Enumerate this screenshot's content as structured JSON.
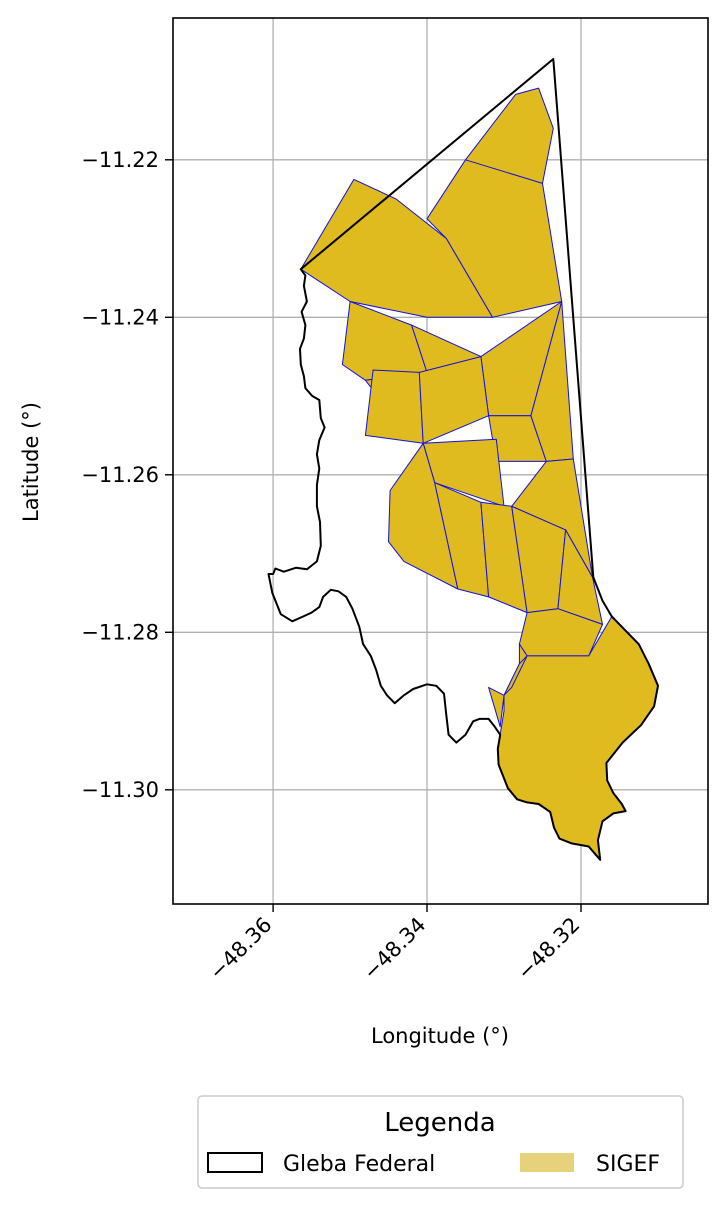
{
  "chart_data": {
    "type": "map",
    "xlabel": "Longitude (°)",
    "ylabel": "Latitude (°)",
    "xlim": [
      -48.373,
      -48.3035
    ],
    "ylim": [
      -11.3145,
      -11.202
    ],
    "x_ticks": [
      -48.36,
      -48.34,
      -48.32
    ],
    "x_tick_labels": [
      "−48.36",
      "−48.34",
      "−48.32"
    ],
    "y_ticks": [
      -11.22,
      -11.24,
      -11.26,
      -11.28,
      -11.3
    ],
    "y_tick_labels": [
      "−11.22",
      "−11.24",
      "−11.26",
      "−11.28",
      "−11.30"
    ],
    "grid": true,
    "legend": {
      "title": "Legenda",
      "placement": "bottom-center",
      "entries": [
        {
          "label": "Gleba Federal",
          "style": "outline",
          "color": "#000000"
        },
        {
          "label": "SIGEF",
          "style": "fill",
          "color": "#e6d27a"
        }
      ]
    },
    "colors": {
      "gleba_outline": "#000000",
      "sigef_fill": "#dfbb20",
      "sigef_edge": "#1010dd",
      "grid": "#b0b0b0"
    },
    "gleba_federal_boundary": [
      [
        -48.3236,
        -11.2072
      ],
      [
        -48.3564,
        -11.2339
      ],
      [
        -48.3558,
        -11.2347
      ],
      [
        -48.356,
        -11.236
      ],
      [
        -48.3556,
        -11.238
      ],
      [
        -48.3563,
        -11.2393
      ],
      [
        -48.3558,
        -11.241
      ],
      [
        -48.356,
        -11.2427
      ],
      [
        -48.3565,
        -11.244
      ],
      [
        -48.3564,
        -11.246
      ],
      [
        -48.356,
        -11.2475
      ],
      [
        -48.3558,
        -11.249
      ],
      [
        -48.3549,
        -11.25
      ],
      [
        -48.354,
        -11.2505
      ],
      [
        -48.3538,
        -11.2528
      ],
      [
        -48.3533,
        -11.254
      ],
      [
        -48.354,
        -11.2556
      ],
      [
        -48.3543,
        -11.2574
      ],
      [
        -48.354,
        -11.2592
      ],
      [
        -48.3543,
        -11.2613
      ],
      [
        -48.3543,
        -11.264
      ],
      [
        -48.3539,
        -11.266
      ],
      [
        -48.3538,
        -11.269
      ],
      [
        -48.3543,
        -11.271
      ],
      [
        -48.3556,
        -11.272
      ],
      [
        -48.357,
        -11.2718
      ],
      [
        -48.3586,
        -11.2723
      ],
      [
        -48.3597,
        -11.2719
      ],
      [
        -48.36,
        -11.2726
      ],
      [
        -48.3606,
        -11.2726
      ],
      [
        -48.3601,
        -11.275
      ],
      [
        -48.359,
        -11.2777
      ],
      [
        -48.3575,
        -11.2786
      ],
      [
        -48.3561,
        -11.278
      ],
      [
        -48.355,
        -11.2775
      ],
      [
        -48.354,
        -11.2768
      ],
      [
        -48.3535,
        -11.2755
      ],
      [
        -48.3525,
        -11.2746
      ],
      [
        -48.3515,
        -11.2748
      ],
      [
        -48.3505,
        -11.2755
      ],
      [
        -48.3497,
        -11.277
      ],
      [
        -48.3488,
        -11.2793
      ],
      [
        -48.3483,
        -11.2815
      ],
      [
        -48.3473,
        -11.283
      ],
      [
        -48.3466,
        -11.2848
      ],
      [
        -48.346,
        -11.2868
      ],
      [
        -48.3452,
        -11.288
      ],
      [
        -48.3442,
        -11.289
      ],
      [
        -48.343,
        -11.288
      ],
      [
        -48.3418,
        -11.2872
      ],
      [
        -48.34,
        -11.2866
      ],
      [
        -48.3388,
        -11.2868
      ],
      [
        -48.3378,
        -11.2878
      ],
      [
        -48.3375,
        -11.2905
      ],
      [
        -48.3372,
        -11.293
      ],
      [
        -48.3362,
        -11.294
      ],
      [
        -48.335,
        -11.293
      ],
      [
        -48.334,
        -11.2913
      ],
      [
        -48.3332,
        -11.291
      ],
      [
        -48.332,
        -11.291
      ],
      [
        -48.3312,
        -11.292
      ],
      [
        -48.3305,
        -11.293
      ],
      [
        -48.3308,
        -11.2948
      ],
      [
        -48.3307,
        -11.2968
      ],
      [
        -48.3295,
        -11.2998
      ],
      [
        -48.3283,
        -11.3012
      ],
      [
        -48.327,
        -11.3016
      ],
      [
        -48.3255,
        -11.3018
      ],
      [
        -48.324,
        -11.3028
      ],
      [
        -48.3235,
        -11.3048
      ],
      [
        -48.3228,
        -11.3062
      ],
      [
        -48.3212,
        -11.3068
      ],
      [
        -48.319,
        -11.3072
      ],
      [
        -48.3175,
        -11.3089
      ],
      [
        -48.3178,
        -11.3064
      ],
      [
        -48.3172,
        -11.304
      ],
      [
        -48.3158,
        -11.303
      ],
      [
        -48.3142,
        -11.3027
      ],
      [
        -48.3147,
        -11.3018
      ],
      [
        -48.3158,
        -11.3004
      ],
      [
        -48.3166,
        -11.2988
      ],
      [
        -48.3167,
        -11.2966
      ],
      [
        -48.3146,
        -11.294
      ],
      [
        -48.3122,
        -11.2918
      ],
      [
        -48.3105,
        -11.2894
      ],
      [
        -48.31,
        -11.2868
      ],
      [
        -48.3112,
        -11.284
      ],
      [
        -48.3125,
        -11.2815
      ],
      [
        -48.3142,
        -11.2798
      ],
      [
        -48.316,
        -11.278
      ],
      [
        -48.3172,
        -11.276
      ],
      [
        -48.3178,
        -11.2745
      ],
      [
        -48.3184,
        -11.273
      ],
      [
        -48.3236,
        -11.2072
      ]
    ],
    "sigef_parcels": [
      [
        [
          -48.3255,
          -11.2109
        ],
        [
          -48.3285,
          -11.2117
        ],
        [
          -48.335,
          -11.22
        ],
        [
          -48.3325,
          -11.222
        ],
        [
          -48.325,
          -11.223
        ],
        [
          -48.3236,
          -11.216
        ]
      ],
      [
        [
          -48.335,
          -11.22
        ],
        [
          -48.325,
          -11.223
        ],
        [
          -48.3225,
          -11.238
        ],
        [
          -48.3315,
          -11.24
        ],
        [
          -48.3375,
          -11.23
        ],
        [
          -48.34,
          -11.2275
        ]
      ],
      [
        [
          -48.3495,
          -11.2225
        ],
        [
          -48.3564,
          -11.2339
        ],
        [
          -48.35,
          -11.238
        ],
        [
          -48.34,
          -11.24
        ],
        [
          -48.3315,
          -11.24
        ],
        [
          -48.3375,
          -11.23
        ],
        [
          -48.344,
          -11.225
        ]
      ],
      [
        [
          -48.35,
          -11.238
        ],
        [
          -48.342,
          -11.241
        ],
        [
          -48.34,
          -11.247
        ],
        [
          -48.348,
          -11.248
        ],
        [
          -48.351,
          -11.246
        ]
      ],
      [
        [
          -48.342,
          -11.241
        ],
        [
          -48.333,
          -11.245
        ],
        [
          -48.332,
          -11.2525
        ],
        [
          -48.342,
          -11.2555
        ],
        [
          -48.348,
          -11.248
        ],
        [
          -48.34,
          -11.247
        ]
      ],
      [
        [
          -48.333,
          -11.245
        ],
        [
          -48.3225,
          -11.238
        ],
        [
          -48.3265,
          -11.2525
        ],
        [
          -48.332,
          -11.2525
        ]
      ],
      [
        [
          -48.347,
          -11.2467
        ],
        [
          -48.341,
          -11.247
        ],
        [
          -48.3405,
          -11.256
        ],
        [
          -48.348,
          -11.255
        ]
      ],
      [
        [
          -48.341,
          -11.247
        ],
        [
          -48.333,
          -11.245
        ],
        [
          -48.332,
          -11.2525
        ],
        [
          -48.3405,
          -11.256
        ]
      ],
      [
        [
          -48.332,
          -11.2525
        ],
        [
          -48.3265,
          -11.2525
        ],
        [
          -48.3245,
          -11.2583
        ],
        [
          -48.331,
          -11.2583
        ]
      ],
      [
        [
          -48.3405,
          -11.256
        ],
        [
          -48.331,
          -11.2555
        ],
        [
          -48.33,
          -11.264
        ],
        [
          -48.339,
          -11.261
        ]
      ],
      [
        [
          -48.3265,
          -11.2525
        ],
        [
          -48.3225,
          -11.238
        ],
        [
          -48.321,
          -11.258
        ],
        [
          -48.3245,
          -11.2583
        ]
      ],
      [
        [
          -48.3245,
          -11.2583
        ],
        [
          -48.321,
          -11.258
        ],
        [
          -48.3185,
          -11.273
        ],
        [
          -48.322,
          -11.267
        ],
        [
          -48.329,
          -11.264
        ]
      ],
      [
        [
          -48.3405,
          -11.256
        ],
        [
          -48.339,
          -11.261
        ],
        [
          -48.336,
          -11.2745
        ],
        [
          -48.343,
          -11.271
        ],
        [
          -48.345,
          -11.2685
        ],
        [
          -48.3448,
          -11.262
        ]
      ],
      [
        [
          -48.339,
          -11.261
        ],
        [
          -48.333,
          -11.2635
        ],
        [
          -48.332,
          -11.2755
        ],
        [
          -48.336,
          -11.2745
        ]
      ],
      [
        [
          -48.333,
          -11.2635
        ],
        [
          -48.329,
          -11.264
        ],
        [
          -48.327,
          -11.2775
        ],
        [
          -48.332,
          -11.2755
        ]
      ],
      [
        [
          -48.329,
          -11.264
        ],
        [
          -48.322,
          -11.267
        ],
        [
          -48.323,
          -11.277
        ],
        [
          -48.327,
          -11.2775
        ]
      ],
      [
        [
          -48.322,
          -11.267
        ],
        [
          -48.3185,
          -11.273
        ],
        [
          -48.3172,
          -11.279
        ],
        [
          -48.323,
          -11.277
        ]
      ],
      [
        [
          -48.327,
          -11.2775
        ],
        [
          -48.323,
          -11.277
        ],
        [
          -48.3172,
          -11.279
        ],
        [
          -48.319,
          -11.283
        ],
        [
          -48.327,
          -11.283
        ],
        [
          -48.328,
          -11.2815
        ]
      ],
      [
        [
          -48.328,
          -11.2815
        ],
        [
          -48.327,
          -11.283
        ],
        [
          -48.319,
          -11.283
        ],
        [
          -48.316,
          -11.278
        ],
        [
          -48.3142,
          -11.2798
        ],
        [
          -48.3125,
          -11.2815
        ],
        [
          -48.3112,
          -11.284
        ],
        [
          -48.31,
          -11.2868
        ],
        [
          -48.3105,
          -11.2894
        ],
        [
          -48.3122,
          -11.2918
        ],
        [
          -48.3146,
          -11.294
        ],
        [
          -48.3167,
          -11.2966
        ],
        [
          -48.3166,
          -11.2988
        ],
        [
          -48.3158,
          -11.3004
        ],
        [
          -48.3147,
          -11.3018
        ],
        [
          -48.3142,
          -11.3027
        ],
        [
          -48.3158,
          -11.303
        ],
        [
          -48.3172,
          -11.304
        ],
        [
          -48.3178,
          -11.3064
        ],
        [
          -48.3175,
          -11.3089
        ],
        [
          -48.319,
          -11.3072
        ],
        [
          -48.3212,
          -11.3068
        ],
        [
          -48.3228,
          -11.3062
        ],
        [
          -48.3235,
          -11.3048
        ],
        [
          -48.324,
          -11.3028
        ],
        [
          -48.3255,
          -11.3018
        ],
        [
          -48.327,
          -11.3016
        ],
        [
          -48.3283,
          -11.3012
        ],
        [
          -48.3295,
          -11.2998
        ],
        [
          -48.3307,
          -11.2968
        ],
        [
          -48.3308,
          -11.2948
        ],
        [
          -48.3305,
          -11.293
        ],
        [
          -48.33,
          -11.29
        ],
        [
          -48.33,
          -11.288
        ],
        [
          -48.329,
          -11.286
        ],
        [
          -48.328,
          -11.284
        ]
      ],
      [
        [
          -48.33,
          -11.288
        ],
        [
          -48.332,
          -11.287
        ],
        [
          -48.3305,
          -11.292
        ]
      ],
      [
        [
          -48.33,
          -11.288
        ],
        [
          -48.328,
          -11.284
        ],
        [
          -48.327,
          -11.283
        ],
        [
          -48.329,
          -11.287
        ]
      ]
    ]
  }
}
